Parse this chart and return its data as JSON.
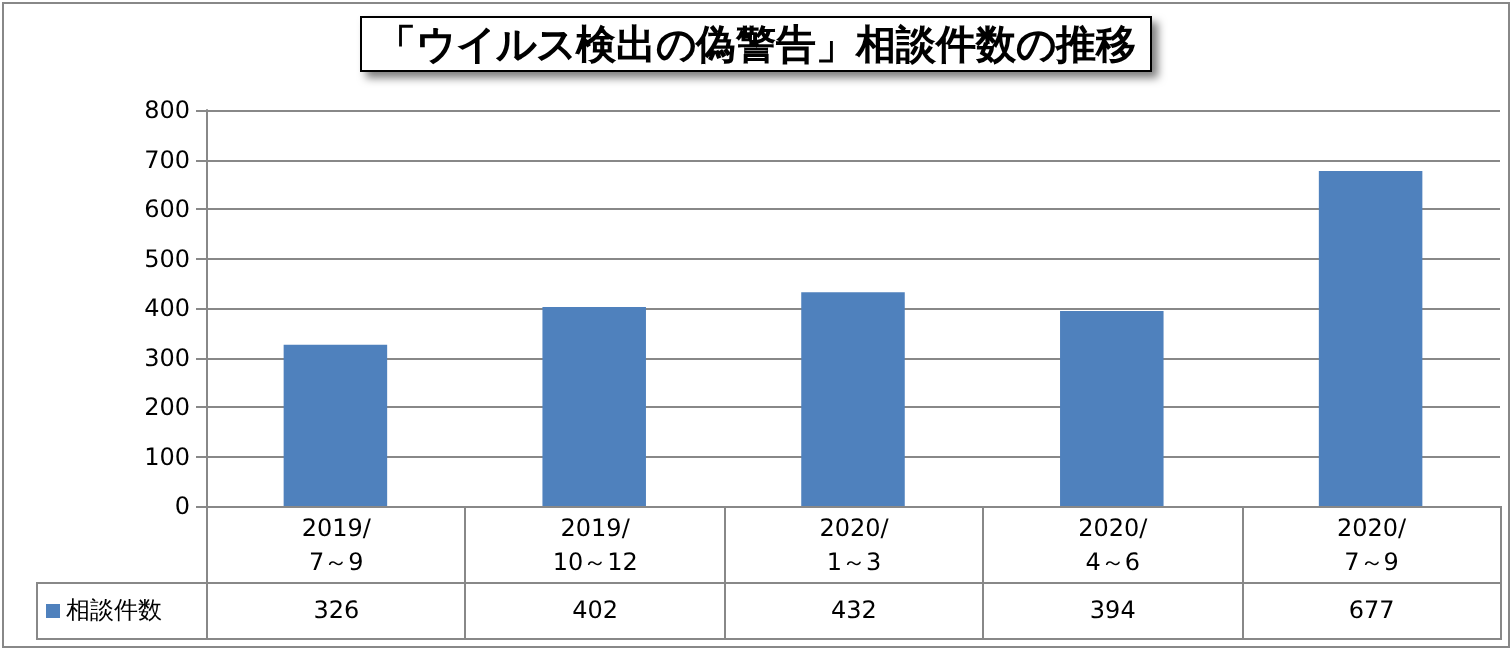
{
  "chart_data": {
    "type": "bar",
    "title": "「ウイルス検出の偽警告」相談件数の推移",
    "categories": [
      "2019/\n7～9",
      "2019/\n10～12",
      "2020/\n1～3",
      "2020/\n4～6",
      "2020/\n7～9"
    ],
    "series": [
      {
        "name": "相談件数",
        "color": "#4f81bd",
        "values": [
          326,
          402,
          432,
          394,
          677
        ]
      }
    ],
    "ylim": [
      0,
      800
    ],
    "yticks": [
      0,
      100,
      200,
      300,
      400,
      500,
      600,
      700,
      800
    ],
    "grid": "y",
    "data_labels": true
  }
}
